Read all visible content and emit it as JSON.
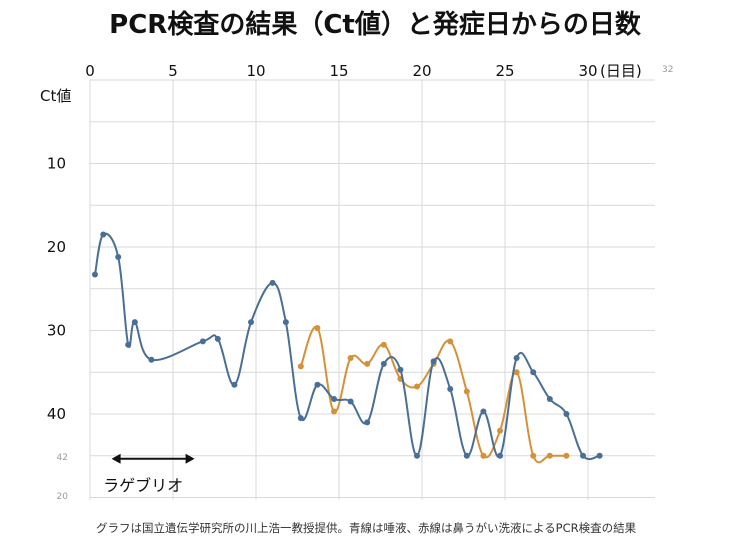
{
  "title": "PCR検査の結果（Ct値）と発症日からの日数",
  "caption": "グラフは国立遺伝学研究所の川上浩一教授提供。青線は唾液、赤線は鼻うがい洗液によるPCR検査の結果",
  "colors": {
    "saliva": "#4a6f96",
    "nasal": "#d4913a",
    "grid": "#d9d9d9",
    "text": "#111111"
  },
  "chart_data": {
    "type": "line",
    "xlabel": "(日目)",
    "ylabel": "Ct値",
    "xlim": [
      0,
      30
    ],
    "ylim": [
      0,
      45
    ],
    "y_inverted": true,
    "grid": true,
    "x_ticks": [
      "0",
      "5",
      "10",
      "15",
      "20",
      "25",
      "30"
    ],
    "y_ticks": [
      "10",
      "20",
      "30",
      "40"
    ],
    "faint_labels": [
      "32",
      "42",
      "20"
    ],
    "annotation": {
      "label": "ラゲブリオ",
      "x_range": [
        1.3,
        6.3
      ]
    },
    "series": [
      {
        "key": "saliva",
        "points": [
          [
            0.3,
            23.3
          ],
          [
            0.8,
            18.5
          ],
          [
            1.7,
            21.2
          ],
          [
            2.3,
            31.7
          ],
          [
            2.7,
            29.0
          ],
          [
            3.7,
            33.5
          ],
          [
            6.8,
            31.3
          ],
          [
            7.7,
            31.0
          ],
          [
            8.7,
            36.5
          ],
          [
            9.7,
            29.0
          ],
          [
            11.0,
            24.3
          ],
          [
            11.8,
            29.0
          ],
          [
            12.7,
            40.5
          ],
          [
            13.7,
            36.5
          ],
          [
            14.7,
            38.2
          ],
          [
            15.7,
            38.5
          ],
          [
            16.7,
            41.0
          ],
          [
            17.7,
            34.0
          ],
          [
            18.7,
            34.7
          ],
          [
            19.7,
            45.0
          ],
          [
            20.7,
            33.7
          ],
          [
            21.7,
            37.0
          ],
          [
            22.7,
            45.0
          ],
          [
            23.7,
            39.7
          ],
          [
            24.7,
            45.0
          ],
          [
            25.7,
            33.3
          ],
          [
            26.7,
            35.0
          ],
          [
            27.7,
            38.2
          ],
          [
            28.7,
            40.0
          ],
          [
            29.7,
            45.0
          ],
          [
            30.7,
            45.0
          ]
        ]
      },
      {
        "key": "nasal",
        "points": [
          [
            12.7,
            34.3
          ],
          [
            13.7,
            29.7
          ],
          [
            14.7,
            39.7
          ],
          [
            15.7,
            33.3
          ],
          [
            16.7,
            34.0
          ],
          [
            17.7,
            31.7
          ],
          [
            18.7,
            35.8
          ],
          [
            19.7,
            36.7
          ],
          [
            20.7,
            34.0
          ],
          [
            21.7,
            31.3
          ],
          [
            22.7,
            37.3
          ],
          [
            23.7,
            45.0
          ],
          [
            24.7,
            42.0
          ],
          [
            25.7,
            35.0
          ],
          [
            26.7,
            45.0
          ],
          [
            27.7,
            45.0
          ],
          [
            28.7,
            45.0
          ]
        ]
      }
    ]
  }
}
